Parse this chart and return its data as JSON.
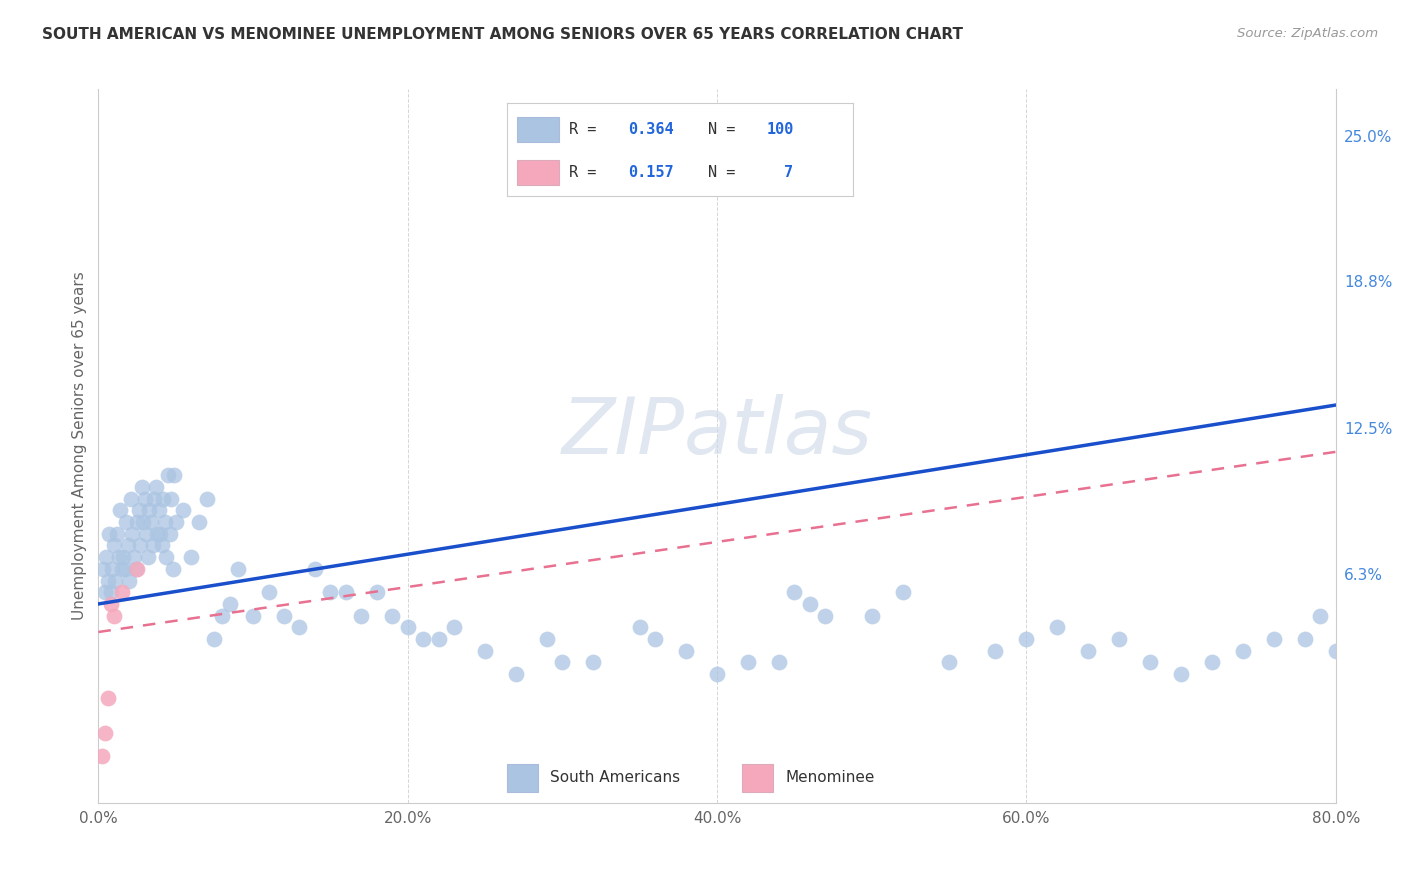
{
  "title": "SOUTH AMERICAN VS MENOMINEE UNEMPLOYMENT AMONG SENIORS OVER 65 YEARS CORRELATION CHART",
  "source": "Source: ZipAtlas.com",
  "ylabel": "Unemployment Among Seniors over 65 years",
  "xlim": [
    0,
    80
  ],
  "ylim": [
    -3.5,
    27
  ],
  "yticks_right": [
    25.0,
    18.8,
    12.5,
    6.3
  ],
  "ytick_labels_right": [
    "25.0%",
    "18.8%",
    "12.5%",
    "6.3%"
  ],
  "xticks": [
    0,
    20,
    40,
    60,
    80
  ],
  "xtick_labels": [
    "0.0%",
    "20.0%",
    "40.0%",
    "60.0%",
    "80.0%"
  ],
  "south_american_color": "#aac4e2",
  "menominee_color": "#f5a8bc",
  "south_american_line_color": "#1a4fcc",
  "menominee_line_color": "#e87090",
  "R_sa": 0.364,
  "N_sa": 100,
  "R_men": 0.157,
  "N_men": 7,
  "watermark": "ZIPatlas",
  "legend_sa": "South Americans",
  "legend_men": "Menominee",
  "sa_line_start_y": 5.0,
  "sa_line_end_y": 13.5,
  "men_line_start_y": 3.8,
  "men_line_end_y": 11.5,
  "sa_x": [
    0.3,
    0.4,
    0.5,
    0.6,
    0.7,
    0.8,
    0.9,
    1.0,
    1.1,
    1.2,
    1.3,
    1.4,
    1.5,
    1.6,
    1.7,
    1.8,
    1.9,
    2.0,
    2.1,
    2.2,
    2.3,
    2.4,
    2.5,
    2.6,
    2.7,
    2.8,
    2.9,
    3.0,
    3.1,
    3.2,
    3.3,
    3.4,
    3.5,
    3.6,
    3.7,
    3.8,
    3.9,
    4.0,
    4.1,
    4.2,
    4.3,
    4.4,
    4.5,
    4.6,
    4.7,
    4.8,
    4.9,
    5.0,
    5.5,
    6.0,
    6.5,
    7.0,
    7.5,
    8.0,
    8.5,
    9.0,
    10.0,
    11.0,
    12.0,
    13.0,
    14.0,
    15.0,
    16.0,
    17.0,
    18.0,
    19.0,
    20.0,
    21.0,
    22.0,
    23.0,
    25.0,
    27.0,
    29.0,
    30.0,
    32.0,
    35.0,
    36.0,
    38.0,
    40.0,
    42.0,
    44.0,
    45.0,
    46.0,
    47.0,
    50.0,
    52.0,
    55.0,
    58.0,
    60.0,
    62.0,
    64.0,
    66.0,
    68.0,
    70.0,
    72.0,
    74.0,
    76.0,
    78.0,
    79.0,
    80.0
  ],
  "sa_y": [
    6.5,
    5.5,
    7.0,
    6.0,
    8.0,
    5.5,
    6.5,
    7.5,
    6.0,
    8.0,
    7.0,
    9.0,
    6.5,
    7.0,
    6.5,
    8.5,
    7.5,
    6.0,
    9.5,
    8.0,
    7.0,
    6.5,
    8.5,
    9.0,
    7.5,
    10.0,
    8.5,
    9.5,
    8.0,
    7.0,
    9.0,
    8.5,
    7.5,
    9.5,
    10.0,
    8.0,
    9.0,
    8.0,
    7.5,
    9.5,
    8.5,
    7.0,
    10.5,
    8.0,
    9.5,
    6.5,
    10.5,
    8.5,
    9.0,
    7.0,
    8.5,
    9.5,
    3.5,
    4.5,
    5.0,
    6.5,
    4.5,
    5.5,
    4.5,
    4.0,
    6.5,
    5.5,
    5.5,
    4.5,
    5.5,
    4.5,
    4.0,
    3.5,
    3.5,
    4.0,
    3.0,
    2.0,
    3.5,
    2.5,
    2.5,
    4.0,
    3.5,
    3.0,
    2.0,
    2.5,
    2.5,
    5.5,
    5.0,
    4.5,
    4.5,
    5.5,
    2.5,
    3.0,
    3.5,
    4.0,
    3.0,
    3.5,
    2.5,
    2.0,
    2.5,
    3.0,
    3.5,
    3.5,
    4.5,
    3.0
  ],
  "men_x": [
    0.2,
    0.4,
    0.6,
    0.8,
    1.0,
    1.5,
    2.5
  ],
  "men_y": [
    -1.5,
    -0.5,
    1.0,
    5.0,
    4.5,
    5.5,
    6.5
  ]
}
